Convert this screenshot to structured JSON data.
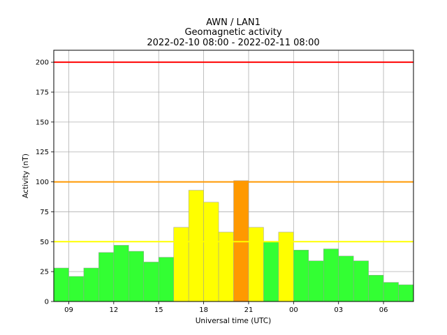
{
  "chart_data": {
    "type": "bar",
    "title": [
      "AWN / LAN1",
      "Geomagnetic activity",
      "2022-02-10 08:00 - 2022-02-11 08:00"
    ],
    "xlabel": "Universal time (UTC)",
    "ylabel": "Activity (nT)",
    "ylim": [
      0,
      210
    ],
    "xlim_hours": [
      8,
      32
    ],
    "grid": true,
    "x_ticks": [
      {
        "hour": 9,
        "label": "09"
      },
      {
        "hour": 12,
        "label": "12"
      },
      {
        "hour": 15,
        "label": "15"
      },
      {
        "hour": 18,
        "label": "18"
      },
      {
        "hour": 21,
        "label": "21"
      },
      {
        "hour": 24,
        "label": "00"
      },
      {
        "hour": 27,
        "label": "03"
      },
      {
        "hour": 30,
        "label": "06"
      }
    ],
    "y_ticks": [
      0,
      25,
      50,
      75,
      100,
      125,
      150,
      175,
      200
    ],
    "thresholds": [
      {
        "value": 50,
        "color": "#ffff00"
      },
      {
        "value": 100,
        "color": "#ff9900"
      },
      {
        "value": 200,
        "color": "#ff0000"
      }
    ],
    "bars": [
      {
        "start_hour": 8,
        "value": 28,
        "color": "#33ff33"
      },
      {
        "start_hour": 9,
        "value": 21,
        "color": "#33ff33"
      },
      {
        "start_hour": 10,
        "value": 28,
        "color": "#33ff33"
      },
      {
        "start_hour": 11,
        "value": 41,
        "color": "#33ff33"
      },
      {
        "start_hour": 12,
        "value": 47,
        "color": "#33ff33"
      },
      {
        "start_hour": 13,
        "value": 42,
        "color": "#33ff33"
      },
      {
        "start_hour": 14,
        "value": 33,
        "color": "#33ff33"
      },
      {
        "start_hour": 15,
        "value": 37,
        "color": "#33ff33"
      },
      {
        "start_hour": 16,
        "value": 62,
        "color": "#ffff00"
      },
      {
        "start_hour": 17,
        "value": 93,
        "color": "#ffff00"
      },
      {
        "start_hour": 18,
        "value": 83,
        "color": "#ffff00"
      },
      {
        "start_hour": 19,
        "value": 58,
        "color": "#ffff00"
      },
      {
        "start_hour": 20,
        "value": 101,
        "color": "#ff9900"
      },
      {
        "start_hour": 21,
        "value": 62,
        "color": "#ffff00"
      },
      {
        "start_hour": 22,
        "value": 50,
        "color": "#33ff33"
      },
      {
        "start_hour": 23,
        "value": 58,
        "color": "#ffff00"
      },
      {
        "start_hour": 24,
        "value": 43,
        "color": "#33ff33"
      },
      {
        "start_hour": 25,
        "value": 34,
        "color": "#33ff33"
      },
      {
        "start_hour": 26,
        "value": 44,
        "color": "#33ff33"
      },
      {
        "start_hour": 27,
        "value": 38,
        "color": "#33ff33"
      },
      {
        "start_hour": 28,
        "value": 34,
        "color": "#33ff33"
      },
      {
        "start_hour": 29,
        "value": 22,
        "color": "#33ff33"
      },
      {
        "start_hour": 30,
        "value": 16,
        "color": "#33ff33"
      },
      {
        "start_hour": 31,
        "value": 14,
        "color": "#33ff33"
      }
    ]
  }
}
